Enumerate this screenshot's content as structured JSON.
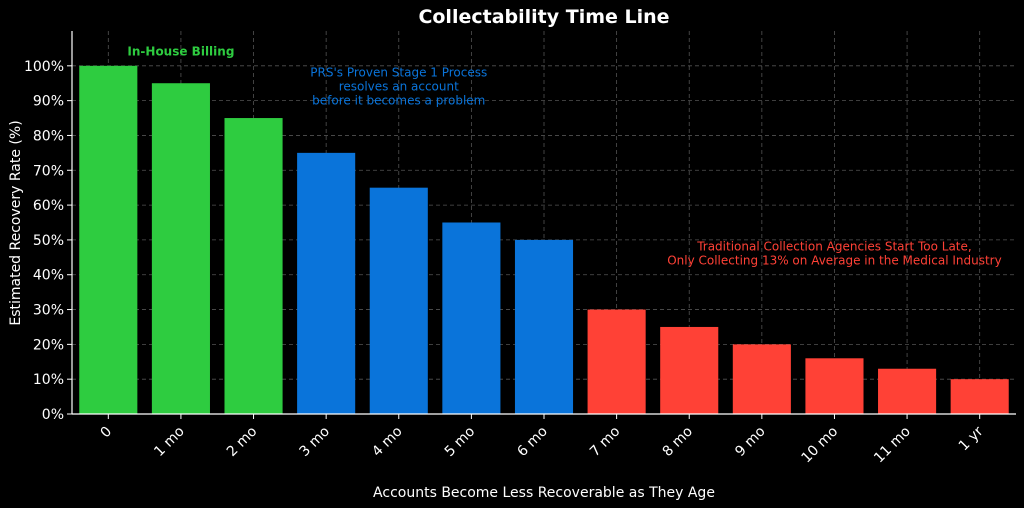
{
  "chart_data": {
    "type": "bar",
    "title": "Collectability Time Line",
    "xlabel": "Accounts Become Less Recoverable as They Age",
    "ylabel": "Estimated Recovery Rate (%)",
    "ylim": [
      0,
      110
    ],
    "yticks": [
      0,
      10,
      20,
      30,
      40,
      50,
      60,
      70,
      80,
      90,
      100
    ],
    "ytick_suffix": "%",
    "grid": true,
    "categories": [
      "0",
      "1 mo",
      "2 mo",
      "3 mo",
      "4 mo",
      "5 mo",
      "6 mo",
      "7 mo",
      "8 mo",
      "9 mo",
      "10 mo",
      "11 mo",
      "1 yr"
    ],
    "values": [
      100,
      95,
      85,
      75,
      65,
      55,
      50,
      30,
      25,
      20,
      16,
      13,
      10
    ],
    "bar_colors": [
      "#2ecc40",
      "#2ecc40",
      "#2ecc40",
      "#0a74da",
      "#0a74da",
      "#0a74da",
      "#0a74da",
      "#ff4136",
      "#ff4136",
      "#ff4136",
      "#ff4136",
      "#ff4136",
      "#ff4136"
    ],
    "annotations": [
      {
        "lines": [
          "In-House Billing"
        ],
        "x_category": "1 mo",
        "y": 103,
        "color": "#2ecc40",
        "bold": true
      },
      {
        "lines": [
          "PRS's Proven Stage 1 Process",
          "resolves an account",
          "before it becomes a problem"
        ],
        "x_category": "4 mo",
        "y": 97,
        "color": "#0a74da",
        "bold": false
      },
      {
        "lines": [
          "Traditional Collection Agencies Start Too Late,",
          "Only Collecting 13% on Average in the Medical Industry"
        ],
        "x_category": "10 mo",
        "y": 47,
        "color": "#ff4136",
        "bold": false
      }
    ]
  }
}
